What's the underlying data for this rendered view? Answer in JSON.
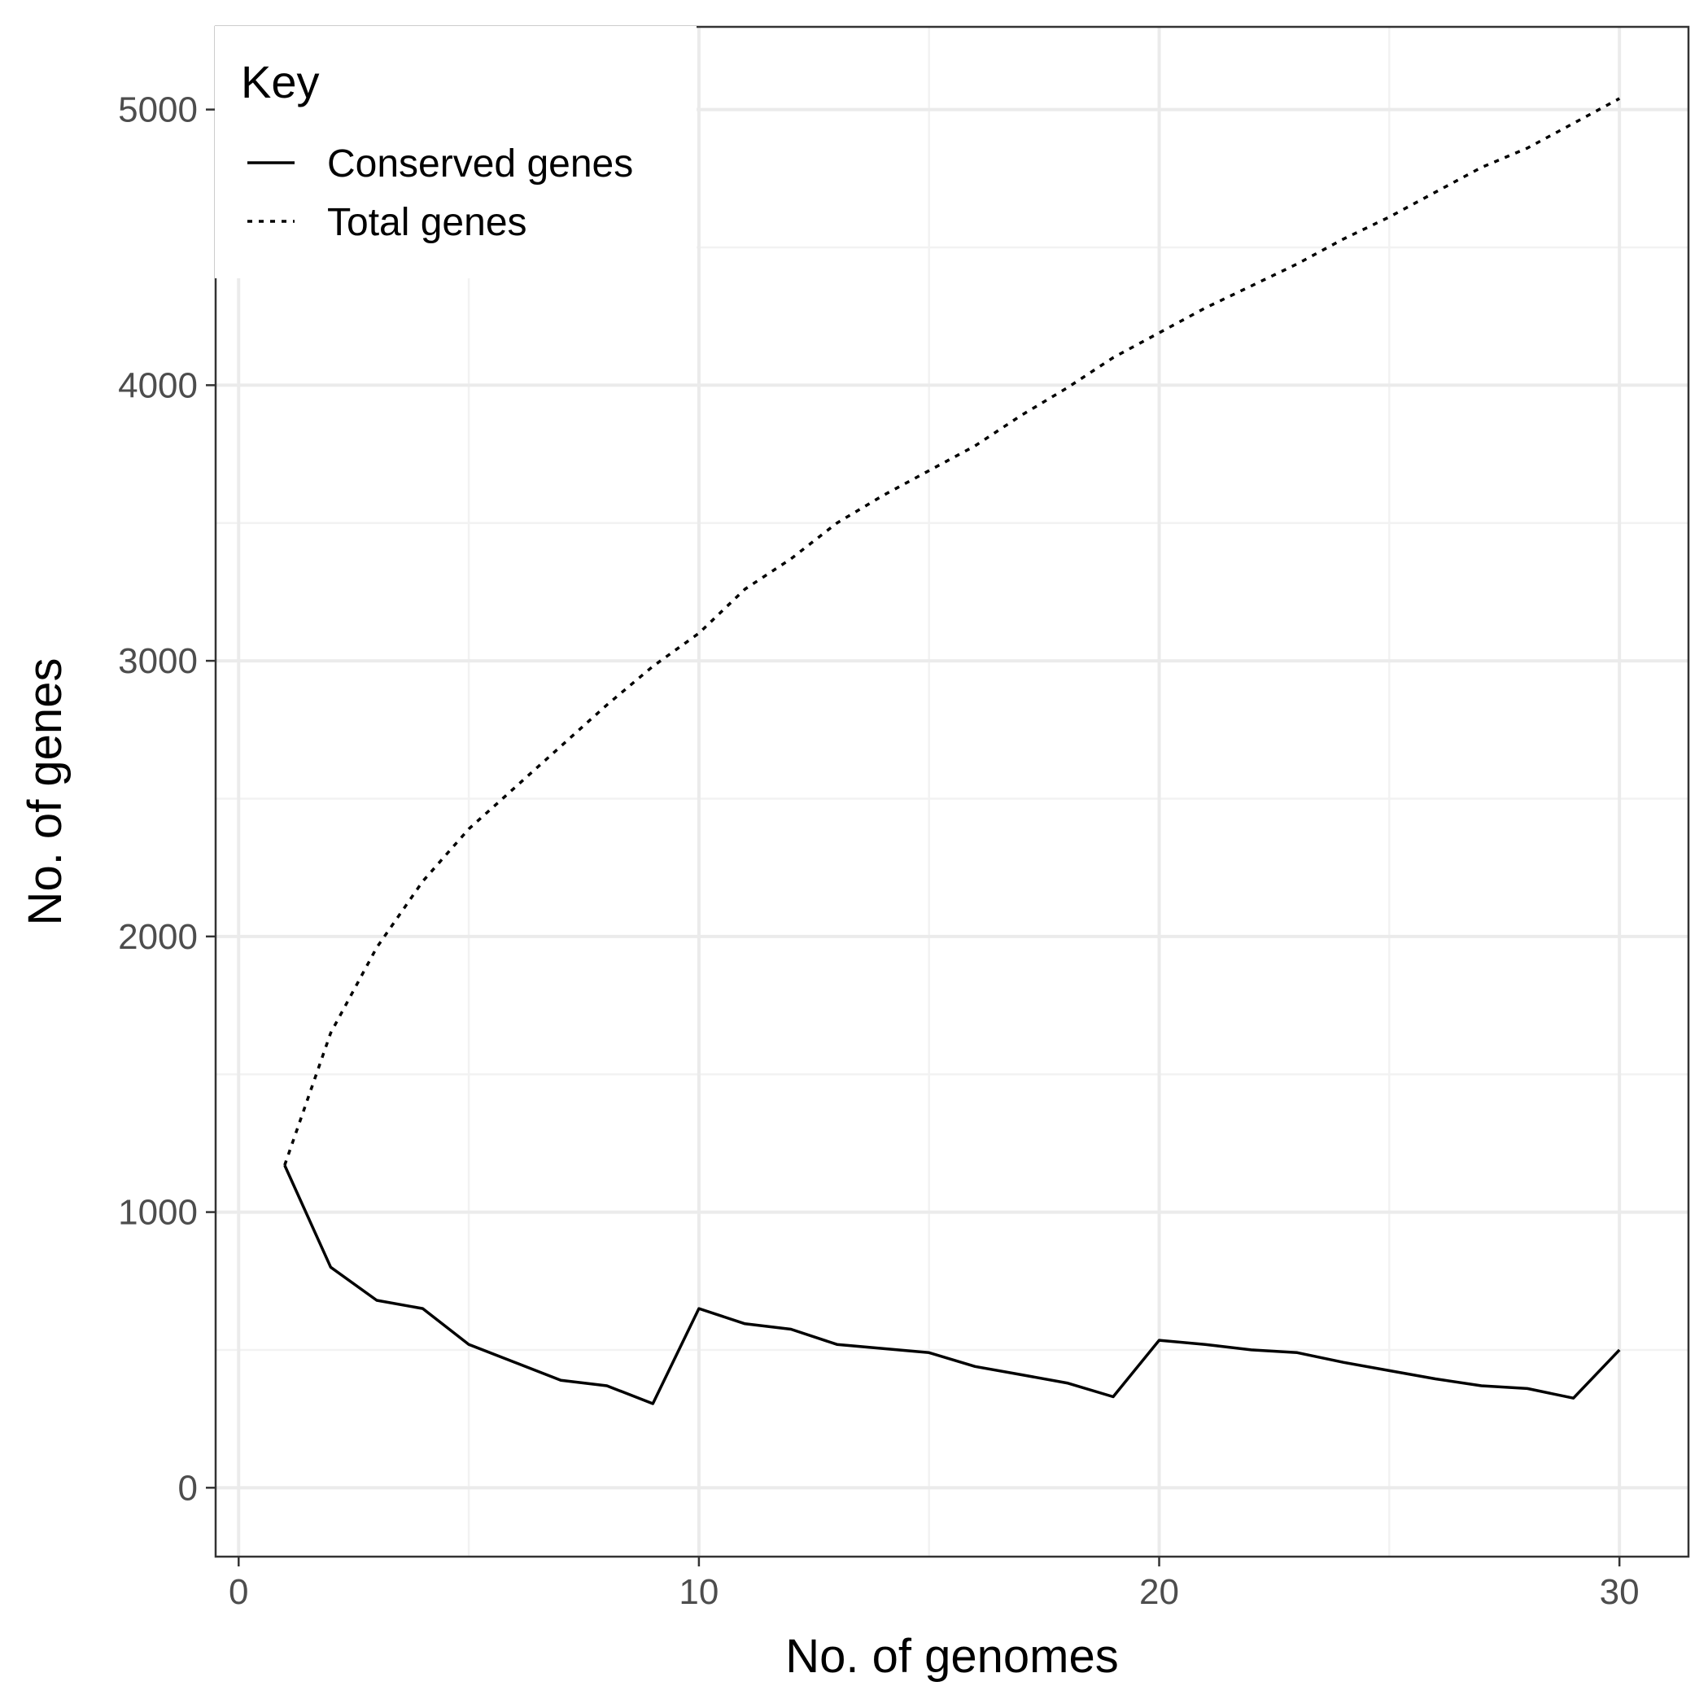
{
  "chart_data": {
    "type": "line",
    "xlabel": "No. of genomes",
    "ylabel": "No. of genes",
    "xlim": [
      -0.5,
      31.5
    ],
    "ylim": [
      -250,
      5300
    ],
    "x_ticks": [
      0,
      10,
      20,
      30
    ],
    "x_tick_labels": [
      "0",
      "10",
      "20",
      "30"
    ],
    "y_ticks": [
      0,
      1000,
      2000,
      3000,
      4000,
      5000
    ],
    "y_tick_labels": [
      "0",
      "1000",
      "2000",
      "3000",
      "4000",
      "5000"
    ],
    "grid": true,
    "legend": {
      "title": "Key",
      "position": "top-left",
      "entries": [
        {
          "label": "Conserved genes",
          "linetype": "solid"
        },
        {
          "label": "Total genes",
          "linetype": "dotted"
        }
      ]
    },
    "x": [
      1,
      2,
      3,
      4,
      5,
      6,
      7,
      8,
      9,
      10,
      11,
      12,
      13,
      14,
      15,
      16,
      17,
      18,
      19,
      20,
      21,
      22,
      23,
      24,
      25,
      26,
      27,
      28,
      29,
      30
    ],
    "series": [
      {
        "name": "Conserved genes",
        "linetype": "solid",
        "color": "#000000",
        "values": [
          1170,
          800,
          680,
          650,
          520,
          455,
          390,
          370,
          305,
          650,
          595,
          575,
          520,
          505,
          490,
          440,
          410,
          380,
          330,
          535,
          520,
          500,
          490,
          455,
          425,
          395,
          370,
          360,
          325,
          500
        ]
      },
      {
        "name": "Total genes",
        "linetype": "dotted",
        "color": "#000000",
        "values": [
          1170,
          1650,
          1960,
          2200,
          2390,
          2540,
          2690,
          2840,
          2980,
          3100,
          3260,
          3370,
          3500,
          3600,
          3690,
          3780,
          3890,
          3990,
          4100,
          4190,
          4280,
          4360,
          4440,
          4530,
          4610,
          4700,
          4790,
          4860,
          4950,
          5040
        ]
      }
    ]
  }
}
